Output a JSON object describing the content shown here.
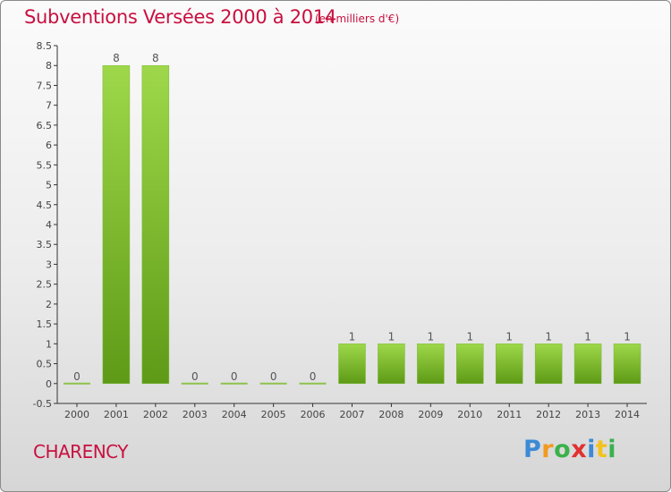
{
  "header": {
    "title": "Subventions Versées 2000 à 2014",
    "subtitle": "(en milliers d'€)"
  },
  "footer": {
    "commune": "CHARENCY",
    "logo_letters": [
      {
        "ch": "P",
        "color": "#3a8ad6"
      },
      {
        "ch": "r",
        "color": "#f29a1f"
      },
      {
        "ch": "o",
        "color": "#3ab14a"
      },
      {
        "ch": "x",
        "color": "#e03131"
      },
      {
        "ch": "i",
        "color": "#3a8ad6"
      },
      {
        "ch": "t",
        "color": "#f2c21f"
      },
      {
        "ch": "i",
        "color": "#3ab14a"
      }
    ]
  },
  "chart_data": {
    "type": "bar",
    "categories": [
      "2000",
      "2001",
      "2002",
      "2003",
      "2004",
      "2005",
      "2006",
      "2007",
      "2008",
      "2009",
      "2010",
      "2011",
      "2012",
      "2013",
      "2014"
    ],
    "values": [
      0,
      8,
      8,
      0,
      0,
      0,
      0,
      1,
      1,
      1,
      1,
      1,
      1,
      1,
      1
    ],
    "value_labels": [
      "0",
      "8",
      "8",
      "0",
      "0",
      "0",
      "0",
      "1",
      "1",
      "1",
      "1",
      "1",
      "1",
      "1",
      "1"
    ],
    "ylim": [
      -0.5,
      8.5
    ],
    "yticks": [
      "8.5",
      "8",
      "7.5",
      "7",
      "6.5",
      "6",
      "5.5",
      "5",
      "4.5",
      "4",
      "3.5",
      "3",
      "2.5",
      "2",
      "1.5",
      "1",
      "0.5",
      "0",
      "-0.5"
    ],
    "ytick_values": [
      8.5,
      8,
      7.5,
      7,
      6.5,
      6,
      5.5,
      5,
      4.5,
      4,
      3.5,
      3,
      2.5,
      2,
      1.5,
      1,
      0.5,
      0,
      -0.5
    ],
    "grid": false,
    "bar_color_top": "#9ed84a",
    "bar_color_bottom": "#5e9a16"
  }
}
